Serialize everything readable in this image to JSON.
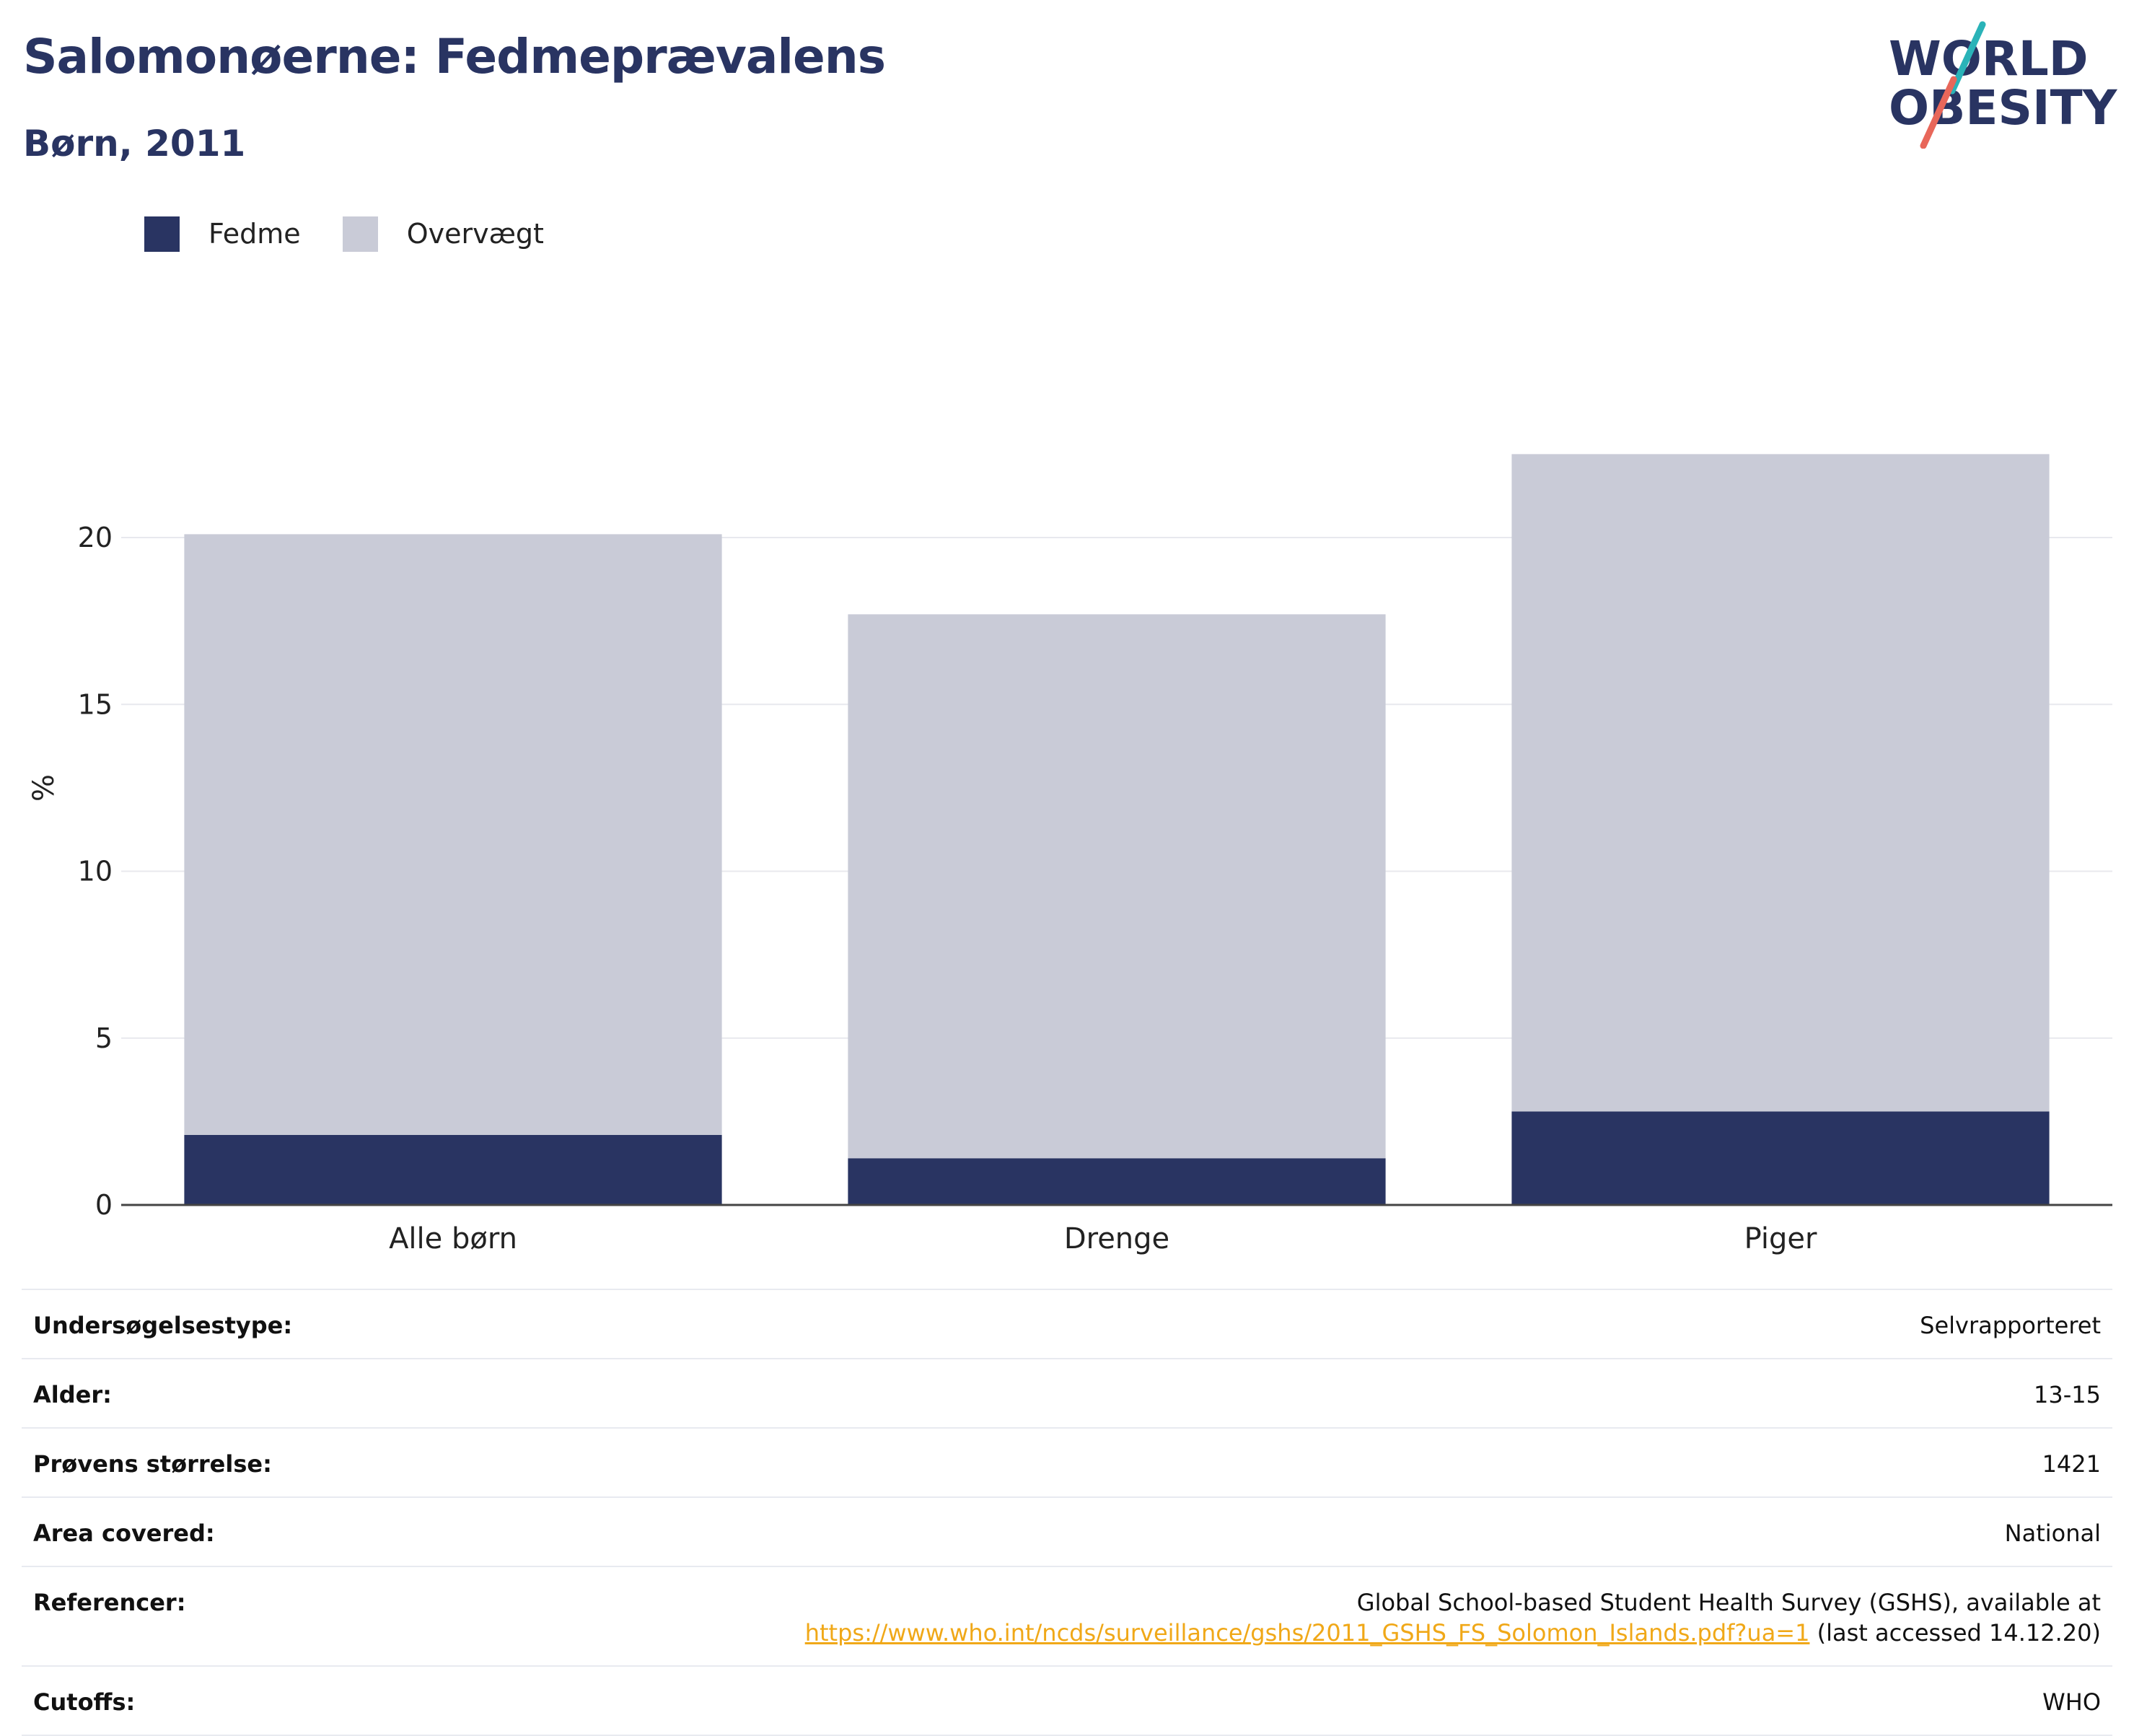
{
  "header": {
    "title": "Salomonøerne: Fedmeprævalens",
    "subtitle": "Børn, 2011"
  },
  "logo": {
    "line1": "WORLD",
    "line2": "OBESITY",
    "colors": {
      "navy": "#293462",
      "teal": "#2ab3b8",
      "coral": "#e8675a"
    }
  },
  "legend": [
    {
      "label": "Fedme",
      "color": "#293462"
    },
    {
      "label": "Overvægt",
      "color": "#c9cbd7"
    }
  ],
  "chart_data": {
    "type": "bar",
    "stacked": true,
    "categories": [
      "Alle børn",
      "Drenge",
      "Piger"
    ],
    "series": [
      {
        "name": "Fedme",
        "color": "#293462",
        "values": [
          2.1,
          1.4,
          2.8
        ]
      },
      {
        "name": "Overvægt",
        "color": "#c9cbd7",
        "values": [
          18.0,
          16.3,
          19.7
        ]
      }
    ],
    "ylabel": "%",
    "ylim": [
      0,
      24
    ],
    "yticks": [
      0,
      5,
      10,
      15,
      20
    ],
    "grid": true
  },
  "info": [
    {
      "key": "Undersøgelsestype:",
      "value": "Selvrapporteret"
    },
    {
      "key": "Alder:",
      "value": "13-15"
    },
    {
      "key": "Prøvens størrelse:",
      "value": "1421"
    },
    {
      "key": "Area covered:",
      "value": "National"
    },
    {
      "key": "Referencer:",
      "value": "Global School-based Student Health Survey (GSHS), available at",
      "link": "https://www.who.int/ncds/surveillance/gshs/2011_GSHS_FS_Solomon_Islands.pdf?ua=1",
      "suffix": "(last accessed 14.12.20)"
    },
    {
      "key": "Cutoffs:",
      "value": "WHO"
    }
  ]
}
